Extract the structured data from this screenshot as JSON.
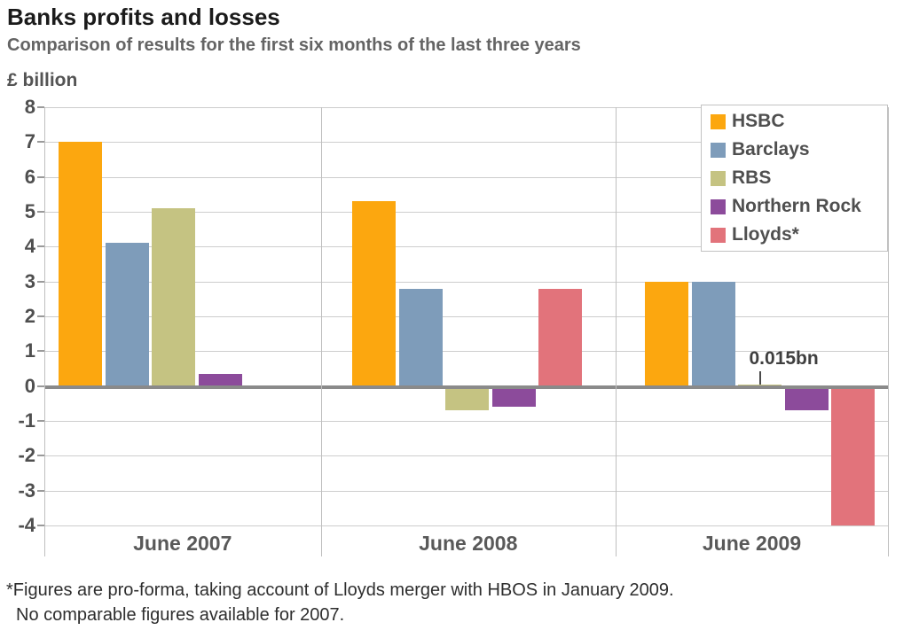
{
  "header": {
    "title": "Banks profits and losses",
    "subtitle": "Comparison of results for the first six months of the last three years",
    "unit": "£ billion"
  },
  "chart_data": {
    "type": "bar",
    "title": "Banks profits and losses",
    "subtitle": "Comparison of results for the first six months of the last three years",
    "ylabel": "£ billion",
    "xlabel": "",
    "categories": [
      "June 2007",
      "June 2008",
      "June 2009"
    ],
    "series": [
      {
        "name": "HSBC",
        "color": "#FCA70F",
        "values": [
          7.0,
          5.3,
          3.0
        ]
      },
      {
        "name": "Barclays",
        "color": "#7E9CBA",
        "values": [
          4.1,
          2.8,
          3.0
        ]
      },
      {
        "name": "RBS",
        "color": "#C5C382",
        "values": [
          5.1,
          -0.7,
          0.015
        ]
      },
      {
        "name": "Northern Rock",
        "color": "#8C4B9B",
        "values": [
          0.35,
          -0.6,
          -0.7
        ]
      },
      {
        "name": "Lloyds*",
        "color": "#E2737B",
        "values": [
          null,
          2.8,
          -4.0
        ]
      }
    ],
    "ylim": [
      -4,
      8
    ],
    "yticks": [
      8,
      7,
      6,
      5,
      4,
      3,
      2,
      1,
      0,
      -1,
      -2,
      -3,
      -4
    ],
    "grid": true,
    "legend_position": "top-right",
    "annotation": {
      "text": "0.015bn",
      "category_index": 2,
      "series_index": 2
    }
  },
  "footnote": {
    "line1": "*Figures are pro-forma, taking account of Lloyds merger with HBOS in January 2009.",
    "line2": "No comparable figures available for 2007."
  }
}
